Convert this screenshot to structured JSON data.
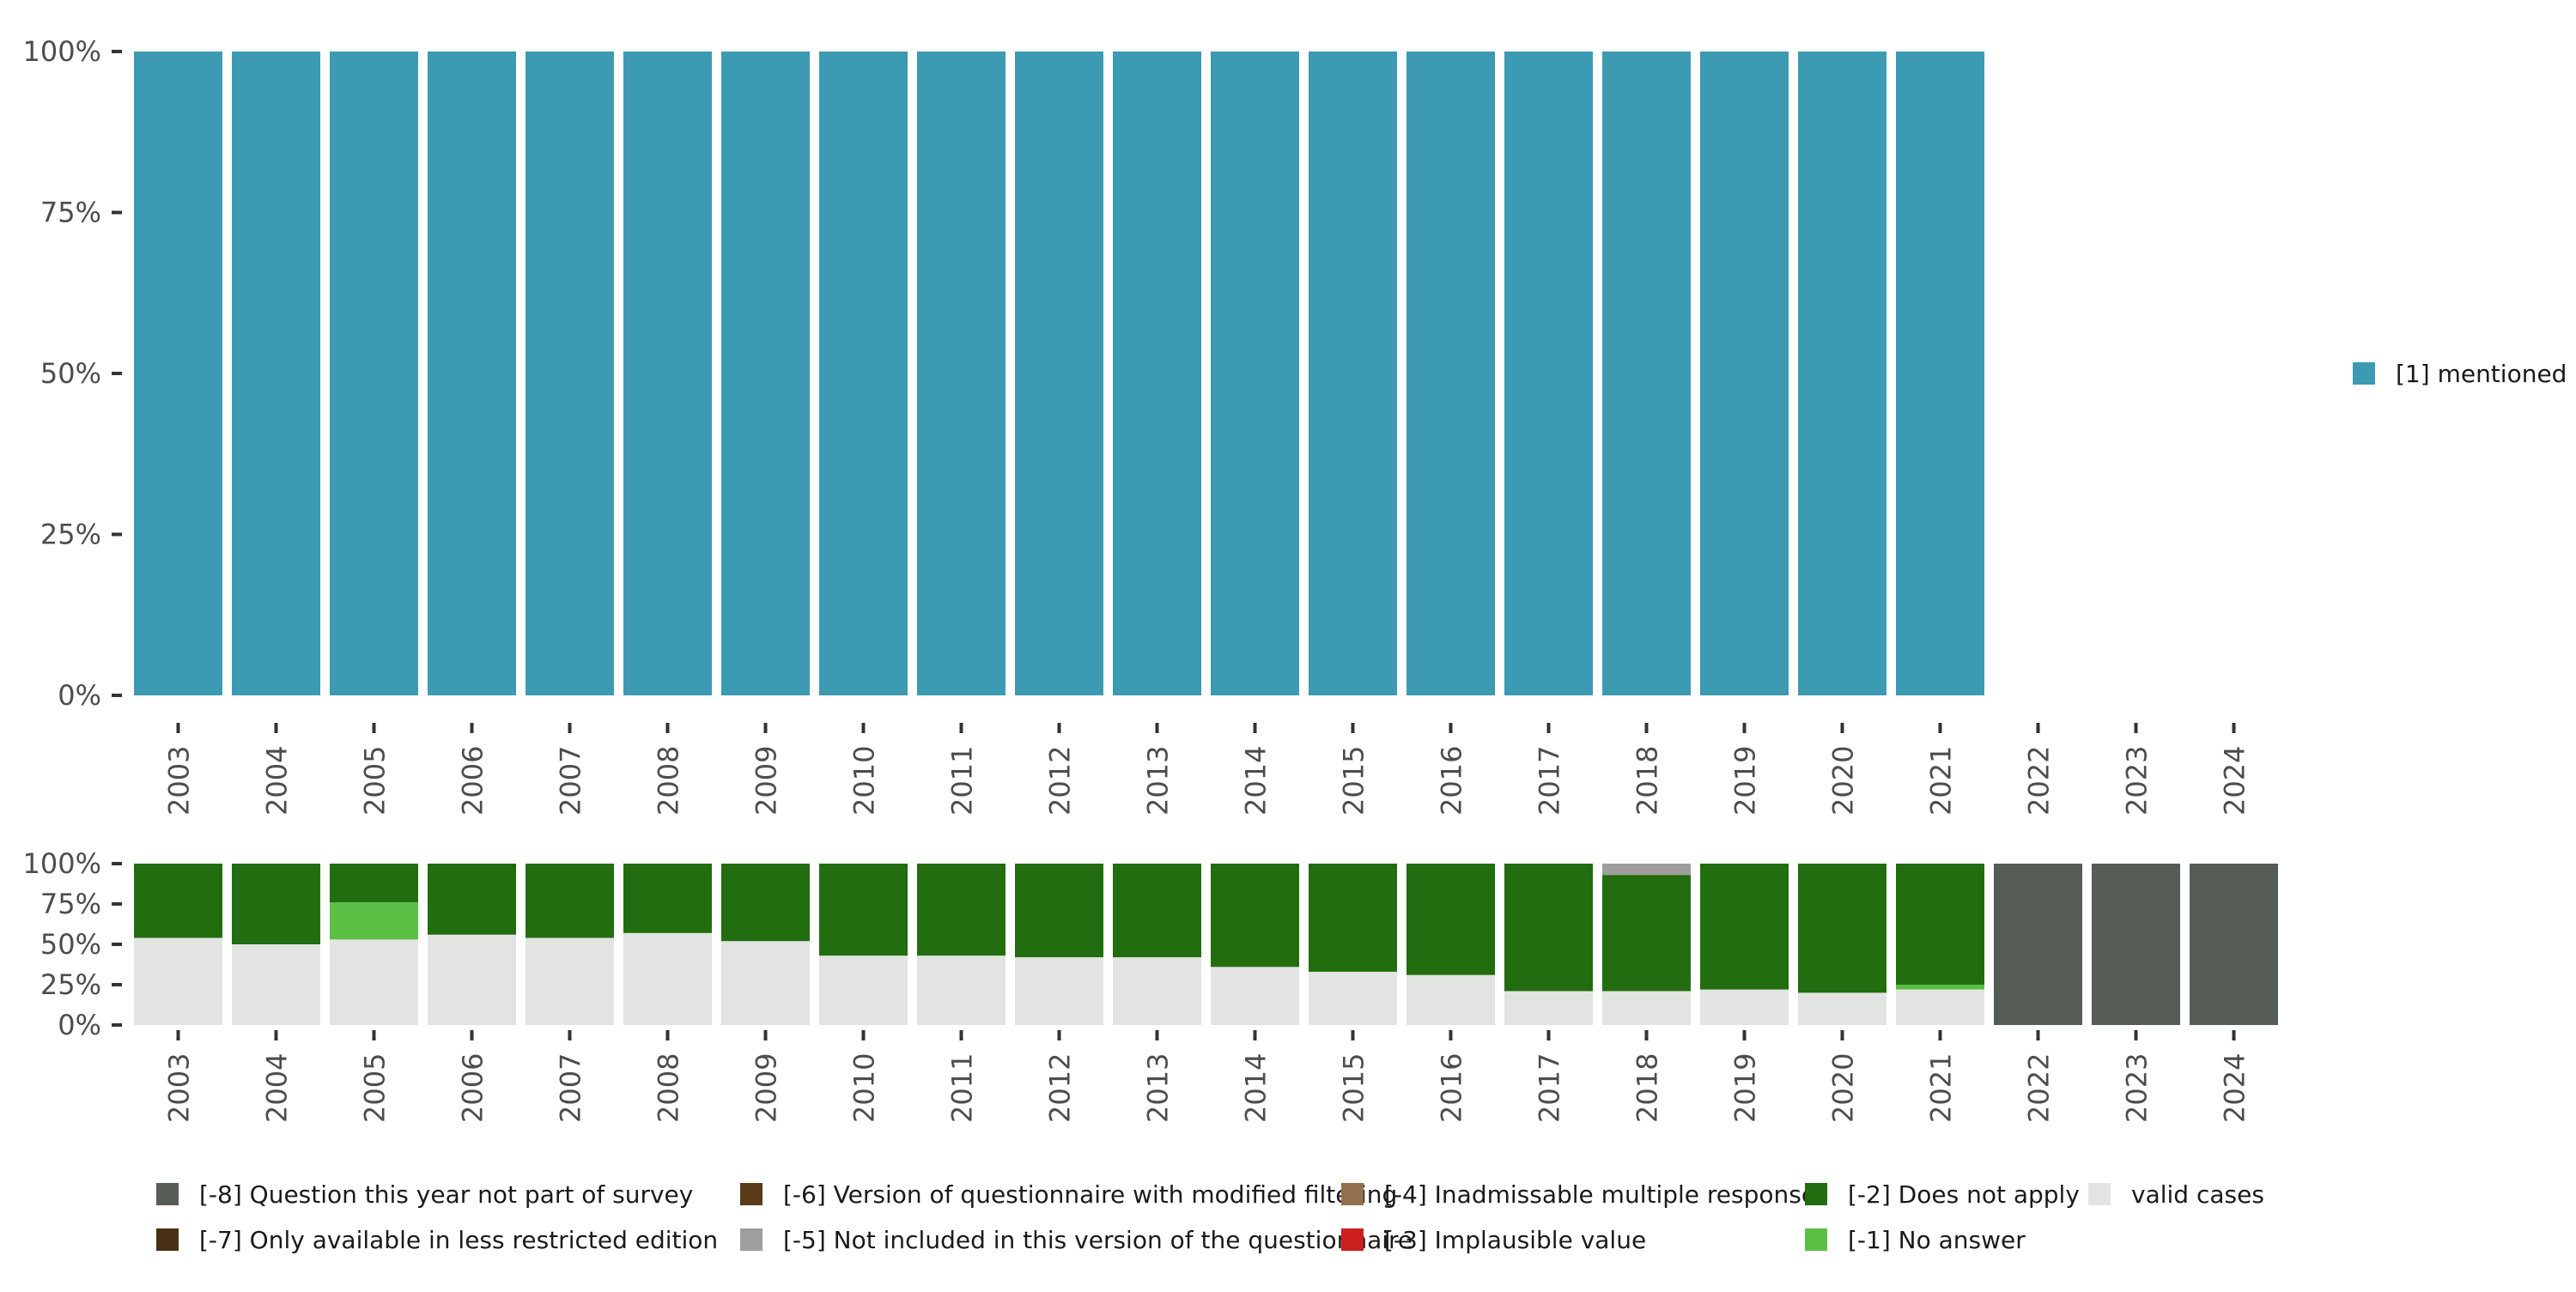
{
  "chart_data": [
    {
      "type": "bar",
      "stacked": true,
      "title": "",
      "xlabel": "",
      "ylabel": "",
      "ylim": [
        0,
        100
      ],
      "y_ticks": [
        "0%",
        "25%",
        "50%",
        "75%",
        "100%"
      ],
      "y_tick_values": [
        0,
        25,
        50,
        75,
        100
      ],
      "categories": [
        "2003",
        "2004",
        "2005",
        "2006",
        "2007",
        "2008",
        "2009",
        "2010",
        "2011",
        "2012",
        "2013",
        "2014",
        "2015",
        "2016",
        "2017",
        "2018",
        "2019",
        "2020",
        "2021",
        "2022",
        "2023",
        "2024"
      ],
      "series": [
        {
          "name": "[1] mentioned",
          "color": "#3c9ab2",
          "values": [
            100,
            100,
            100,
            100,
            100,
            100,
            100,
            100,
            100,
            100,
            100,
            100,
            100,
            100,
            100,
            100,
            100,
            100,
            100,
            null,
            null,
            null
          ]
        }
      ],
      "legend": {
        "position": "right",
        "items": [
          "[1] mentioned"
        ]
      }
    },
    {
      "type": "bar",
      "stacked": true,
      "title": "",
      "xlabel": "",
      "ylabel": "",
      "ylim": [
        0,
        100
      ],
      "y_ticks": [
        "0%",
        "25%",
        "50%",
        "75%",
        "100%"
      ],
      "y_tick_values": [
        0,
        25,
        50,
        75,
        100
      ],
      "categories": [
        "2003",
        "2004",
        "2005",
        "2006",
        "2007",
        "2008",
        "2009",
        "2010",
        "2011",
        "2012",
        "2013",
        "2014",
        "2015",
        "2016",
        "2017",
        "2018",
        "2019",
        "2020",
        "2021",
        "2022",
        "2023",
        "2024"
      ],
      "series": [
        {
          "name": "valid cases",
          "color": "#e1e4e0",
          "values": [
            54,
            50,
            53,
            56,
            54,
            57,
            52,
            43,
            43,
            42,
            42,
            36,
            33,
            31,
            21,
            21,
            22,
            20,
            22,
            0,
            0,
            0
          ]
        },
        {
          "name": "[-1] No answer",
          "color": "#5bbf45",
          "values": [
            0,
            0,
            23,
            0,
            0,
            0,
            0,
            0,
            0,
            0,
            0,
            0,
            0,
            0,
            0,
            0,
            0,
            0,
            3,
            0,
            0,
            0
          ]
        },
        {
          "name": "[-2] Does not apply",
          "color": "#216d0f",
          "values": [
            46,
            50,
            24,
            44,
            46,
            43,
            48,
            57,
            57,
            58,
            58,
            64,
            67,
            69,
            79,
            72,
            78,
            80,
            75,
            0,
            0,
            0
          ]
        },
        {
          "name": "[-5] Not included in this version of the questionnaire",
          "color": "#9e9e9e",
          "values": [
            0,
            0,
            0,
            0,
            0,
            0,
            0,
            0,
            0,
            0,
            0,
            0,
            0,
            0,
            0,
            7,
            0,
            0,
            0,
            0,
            0,
            0
          ]
        },
        {
          "name": "[-8] Question this year not part of survey",
          "color": "#555c55",
          "values": [
            0,
            0,
            0,
            0,
            0,
            0,
            0,
            0,
            0,
            0,
            0,
            0,
            0,
            0,
            0,
            0,
            0,
            0,
            0,
            100,
            100,
            100
          ]
        }
      ],
      "legend": {
        "position": "bottom",
        "items": [
          {
            "label": "[-8] Question this year not part of survey",
            "color": "#555c55"
          },
          {
            "label": "[-7] Only available in less restricted edition",
            "color": "#4a2f14"
          },
          {
            "label": "[-6] Version of questionnaire with modified filtering",
            "color": "#5a3a17"
          },
          {
            "label": "[-5] Not included in this version of the questionnaire",
            "color": "#9e9e9e"
          },
          {
            "label": "[-4] Inadmissable multiple response",
            "color": "#94704f"
          },
          {
            "label": "[-3] Implausible value",
            "color": "#cc1f1f"
          },
          {
            "label": "[-2] Does not apply",
            "color": "#216d0f"
          },
          {
            "label": "[-1] No answer",
            "color": "#5bbf45"
          },
          {
            "label": "valid cases",
            "color": "#e1e4e0"
          }
        ]
      }
    }
  ]
}
